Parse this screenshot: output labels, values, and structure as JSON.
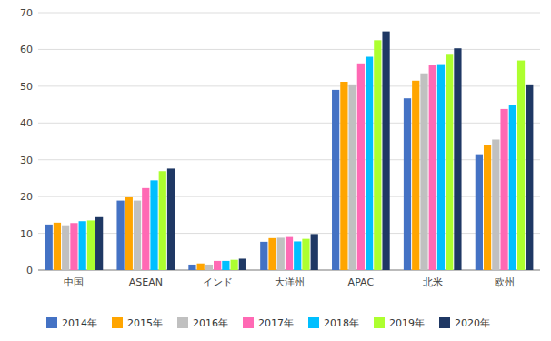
{
  "chart_data": {
    "type": "bar",
    "categories": [
      "中国",
      "ASEAN",
      "インド",
      "大洋州",
      "APAC",
      "北米",
      "欧州"
    ],
    "series": [
      {
        "name": "2014年",
        "color": "#4472C4",
        "values": [
          12.4,
          18.9,
          1.5,
          7.7,
          49.0,
          46.7,
          31.5
        ]
      },
      {
        "name": "2015年",
        "color": "#FFA500",
        "values": [
          12.9,
          19.8,
          1.8,
          8.7,
          51.2,
          51.5,
          34.0
        ]
      },
      {
        "name": "2016年",
        "color": "#C0C0C0",
        "values": [
          12.2,
          18.9,
          1.5,
          8.8,
          50.5,
          53.5,
          35.5
        ]
      },
      {
        "name": "2017年",
        "color": "#FF69B4",
        "values": [
          12.8,
          22.3,
          2.5,
          9.0,
          56.2,
          55.8,
          43.8
        ]
      },
      {
        "name": "2018年",
        "color": "#00BFFF",
        "values": [
          13.3,
          24.4,
          2.5,
          7.8,
          58.0,
          56.0,
          45.0
        ]
      },
      {
        "name": "2019年",
        "color": "#ADFF2F",
        "values": [
          13.5,
          26.9,
          2.8,
          8.5,
          62.5,
          58.8,
          57.0
        ]
      },
      {
        "name": "2020年",
        "color": "#1F3864",
        "values": [
          14.4,
          27.6,
          3.1,
          9.8,
          64.9,
          60.3,
          50.5
        ]
      }
    ],
    "ylim": [
      0,
      70
    ],
    "yticks": [
      0,
      10,
      20,
      30,
      40,
      50,
      60,
      70
    ],
    "grid": true,
    "legend": "bottom"
  }
}
